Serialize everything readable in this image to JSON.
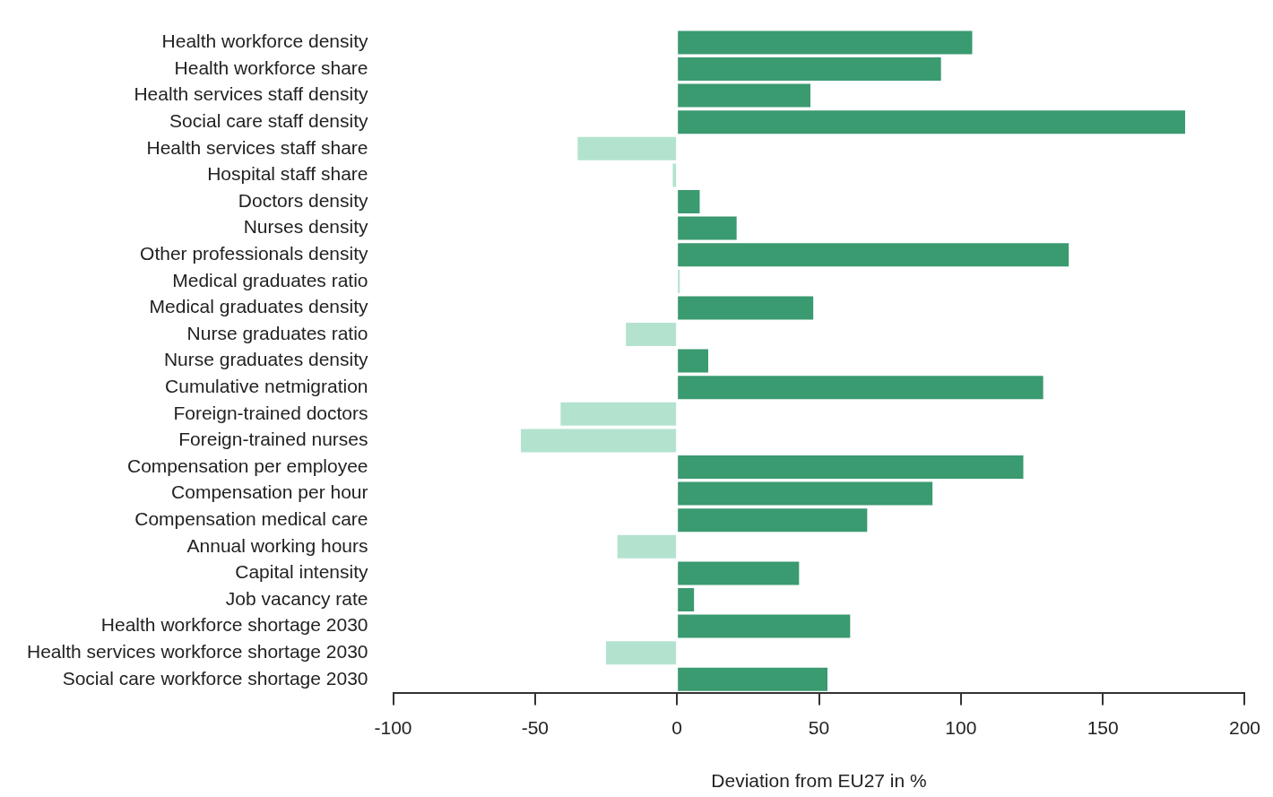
{
  "chart_data": {
    "type": "bar",
    "orientation": "horizontal",
    "xlabel": "Deviation from EU27 in %",
    "categories": [
      "Health workforce density",
      "Health workforce share",
      "Health services staff density",
      "Social care staff density",
      "Health services staff share",
      "Hospital staff share",
      "Doctors density",
      "Nurses density",
      "Other professionals density",
      "Medical graduates ratio",
      "Medical graduates density",
      "Nurse graduates ratio",
      "Nurse graduates density",
      "Cumulative netmigration",
      "Foreign-trained doctors",
      "Foreign-trained nurses",
      "Compensation per employee",
      "Compensation per hour",
      "Compensation medical care",
      "Annual working hours",
      "Capital intensity",
      "Job vacancy rate",
      "Health workforce shortage 2030",
      "Health services workforce shortage 2030",
      "Social care workforce shortage 2030"
    ],
    "values": [
      104,
      93,
      47,
      179,
      -35,
      -1.5,
      8,
      21,
      138,
      1,
      48,
      -18,
      11,
      129,
      -41,
      -55,
      122,
      90,
      67,
      -21,
      43,
      6,
      61,
      -25,
      53
    ],
    "colors": [
      "#3a9a70",
      "#3a9a70",
      "#3a9a70",
      "#3a9a70",
      "#b3e3cf",
      "#b3e3cf",
      "#3a9a70",
      "#3a9a70",
      "#3a9a70",
      "#b3e3cf",
      "#3a9a70",
      "#b3e3cf",
      "#3a9a70",
      "#3a9a70",
      "#b3e3cf",
      "#b3e3cf",
      "#3a9a70",
      "#3a9a70",
      "#3a9a70",
      "#b3e3cf",
      "#3a9a70",
      "#3a9a70",
      "#3a9a70",
      "#b3e3cf",
      "#3a9a70"
    ],
    "xlim": [
      -100,
      200
    ],
    "xticks": [
      -100,
      -50,
      0,
      50,
      100,
      150,
      200
    ],
    "grid": false,
    "legend": false
  }
}
